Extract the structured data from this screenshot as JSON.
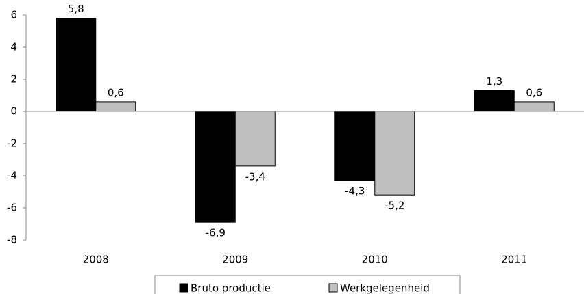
{
  "chart_data": {
    "type": "bar",
    "categories": [
      "2008",
      "2009",
      "2010",
      "2011"
    ],
    "series": [
      {
        "name": "Bruto productie",
        "color": "#000000",
        "values": [
          5.8,
          -6.9,
          -4.3,
          1.3
        ],
        "value_labels": [
          "5,8",
          "-6,9",
          "-4,3",
          "1,3"
        ]
      },
      {
        "name": "Werkgelegenheid",
        "color": "#bfbfbf",
        "values": [
          0.6,
          -3.4,
          -5.2,
          0.6
        ],
        "value_labels": [
          "0,6",
          "-3,4",
          "-5,2",
          "0,6"
        ]
      }
    ],
    "ylim": [
      -8,
      6
    ],
    "yticks": [
      -8,
      -6,
      -4,
      -2,
      0,
      2,
      4,
      6
    ],
    "grid": false
  }
}
